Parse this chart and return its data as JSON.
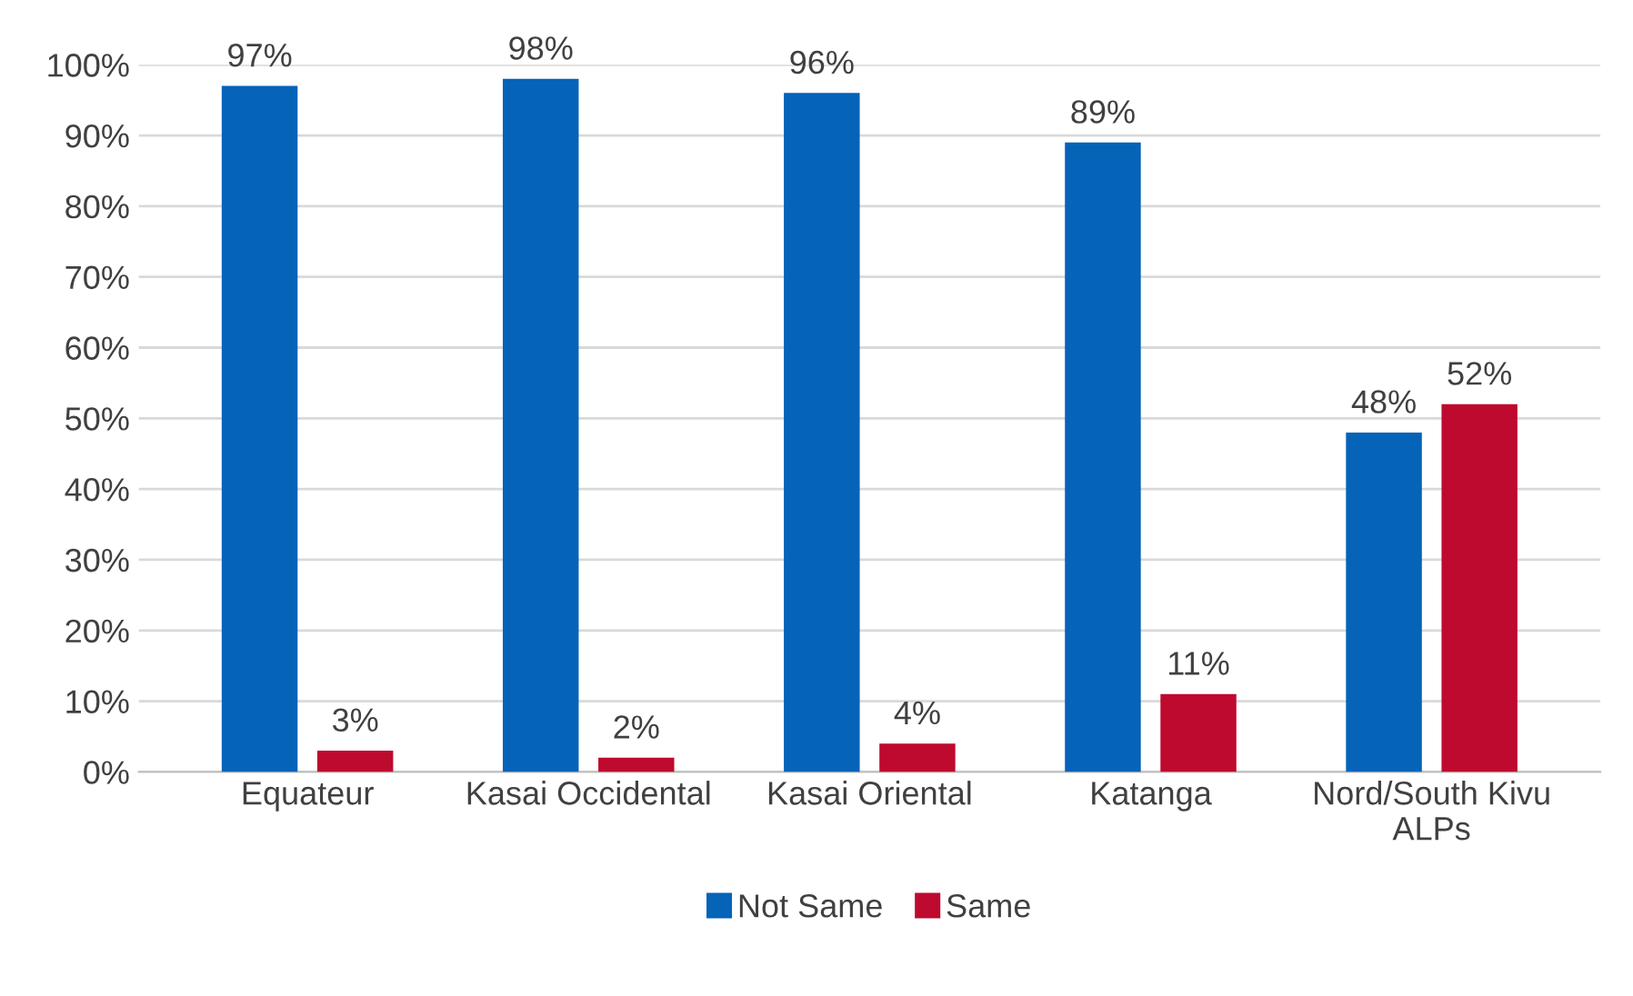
{
  "chart_data": {
    "type": "bar",
    "categories": [
      "Equateur",
      "Kasai Occidental",
      "Kasai Oriental",
      "Katanga",
      "Nord/South Kivu\nALPs"
    ],
    "series": [
      {
        "name": "Not Same",
        "color": "#0563b8",
        "values": [
          97,
          98,
          96,
          89,
          48
        ],
        "value_labels": [
          "97%",
          "98%",
          "96%",
          "89%",
          "48%"
        ]
      },
      {
        "name": "Same",
        "color": "#be0a2f",
        "values": [
          3,
          2,
          4,
          11,
          52
        ],
        "value_labels": [
          "3%",
          "2%",
          "4%",
          "11%",
          "52%"
        ]
      }
    ],
    "ylim": [
      0,
      100
    ],
    "yticks": [
      {
        "value": 0,
        "label": "0%"
      },
      {
        "value": 10,
        "label": "10%"
      },
      {
        "value": 20,
        "label": "20%"
      },
      {
        "value": 30,
        "label": "30%"
      },
      {
        "value": 40,
        "label": "40%"
      },
      {
        "value": 50,
        "label": "50%"
      },
      {
        "value": 60,
        "label": "60%"
      },
      {
        "value": 70,
        "label": "70%"
      },
      {
        "value": 80,
        "label": "80%"
      },
      {
        "value": 90,
        "label": "90%"
      },
      {
        "value": 100,
        "label": "100%"
      }
    ],
    "grid": "y",
    "legend": "bottom"
  }
}
